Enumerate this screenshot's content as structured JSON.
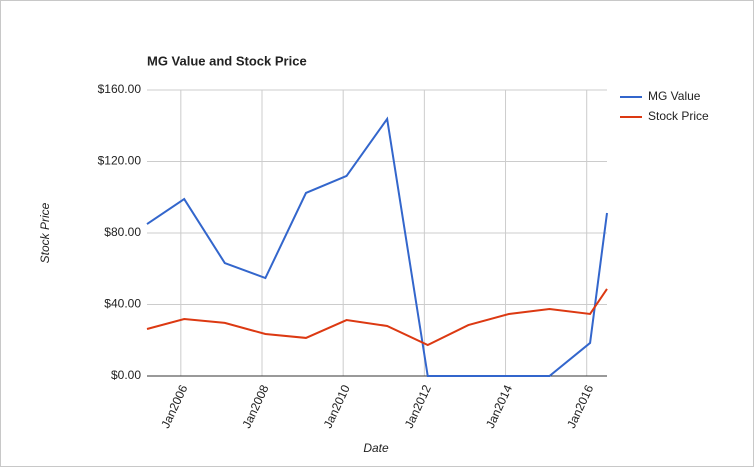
{
  "chart_data": {
    "type": "line",
    "title": "MG Value and Stock Price",
    "x_label": "Date",
    "y_label": "Stock Price",
    "x": [
      "2005-03",
      "2006-02",
      "2007-02",
      "2008-02",
      "2009-02",
      "2010-02",
      "2011-02",
      "2012-02",
      "2013-02",
      "2014-02",
      "2015-02",
      "2016-02",
      "2016-07"
    ],
    "series": [
      {
        "name": "MG Value",
        "color": "#3366cc",
        "values": [
          85.0,
          99.0,
          63.2,
          54.8,
          102.4,
          111.9,
          143.8,
          0,
          0,
          0,
          0,
          18.5,
          91.2
        ]
      },
      {
        "name": "Stock Price",
        "color": "#dc3912",
        "values": [
          26.3,
          31.9,
          29.7,
          23.5,
          21.3,
          31.3,
          28.0,
          17.3,
          28.5,
          34.7,
          37.5,
          34.7,
          48.7
        ]
      }
    ],
    "xlim": [
      "2005-03",
      "2016-07"
    ],
    "xticks": [
      {
        "value": "2006-01",
        "label": "Jan2006"
      },
      {
        "value": "2008-01",
        "label": "Jan2008"
      },
      {
        "value": "2010-01",
        "label": "Jan2010"
      },
      {
        "value": "2012-01",
        "label": "Jan2012"
      },
      {
        "value": "2014-01",
        "label": "Jan2014"
      },
      {
        "value": "2016-01",
        "label": "Jan2016"
      }
    ],
    "ylim": [
      0,
      160
    ],
    "yticks": [
      {
        "value": 0,
        "label": "$0.00"
      },
      {
        "value": 40,
        "label": "$40.00"
      },
      {
        "value": 80,
        "label": "$80.00"
      },
      {
        "value": 120,
        "label": "$120.00"
      },
      {
        "value": 160,
        "label": "$160.00"
      }
    ],
    "grid": true,
    "legend": "right"
  }
}
